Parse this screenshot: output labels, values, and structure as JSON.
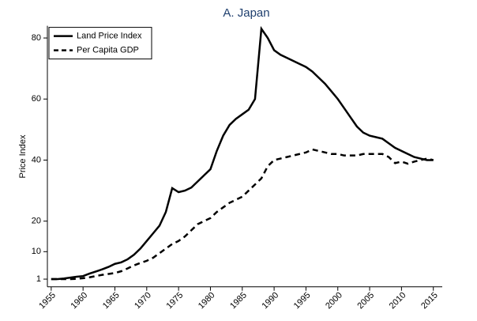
{
  "chart_data": {
    "type": "line",
    "title": "A. Japan",
    "y_label": "Price Index",
    "x": [
      1955,
      1956,
      1957,
      1958,
      1959,
      1960,
      1961,
      1962,
      1963,
      1964,
      1965,
      1966,
      1967,
      1968,
      1969,
      1970,
      1971,
      1972,
      1973,
      1974,
      1975,
      1976,
      1977,
      1978,
      1979,
      1980,
      1981,
      1982,
      1983,
      1984,
      1985,
      1986,
      1987,
      1988,
      1989,
      1990,
      1991,
      1992,
      1993,
      1994,
      1995,
      1996,
      1997,
      1998,
      1999,
      2000,
      2001,
      2002,
      2003,
      2004,
      2005,
      2006,
      2007,
      2008,
      2009,
      2010,
      2011,
      2012,
      2013,
      2014,
      2015
    ],
    "series": [
      {
        "name": "Land Price Index",
        "color": "#000000",
        "dash": false,
        "values": [
          1,
          1,
          1.2,
          1.5,
          1.8,
          2,
          2.8,
          3.5,
          4.2,
          5,
          6,
          6.5,
          7.5,
          9,
          11,
          13.5,
          16,
          18.5,
          23,
          30.8,
          29.5,
          30,
          31,
          33,
          35,
          37,
          43,
          48,
          51.5,
          53.5,
          55,
          56.5,
          60,
          83,
          80,
          76,
          74.5,
          73.5,
          72.5,
          71.5,
          70.5,
          69,
          67,
          65,
          62.5,
          60,
          57,
          54,
          51,
          49,
          48,
          47.5,
          47,
          45.5,
          44,
          43,
          42,
          41,
          40.5,
          40,
          40
        ]
      },
      {
        "name": "Per Capita GDP",
        "color": "#000000",
        "dash": true,
        "values": [
          1,
          1,
          1,
          1,
          1.1,
          1.3,
          1.6,
          2,
          2.4,
          2.7,
          3,
          3.6,
          4.5,
          5.5,
          6.3,
          7,
          8,
          9.5,
          11,
          12.5,
          13.5,
          15,
          17,
          19,
          20,
          21,
          23,
          24.5,
          26,
          27,
          28,
          30,
          32,
          34,
          38,
          40,
          40.5,
          41,
          41.5,
          42,
          42.5,
          43.5,
          43,
          42.5,
          42,
          42,
          41.5,
          41.5,
          41.5,
          42,
          42,
          42,
          42,
          41,
          39,
          39.5,
          38.8,
          39.5,
          40,
          40.5,
          40
        ]
      }
    ],
    "xlim": [
      1954.4,
      2016.4
    ],
    "xticks": [
      1955,
      1960,
      1965,
      1970,
      1975,
      1980,
      1985,
      1990,
      1995,
      2000,
      2005,
      2010,
      2015
    ],
    "ylim": [
      -1.5,
      84
    ],
    "yticks": [
      1,
      10,
      20,
      40,
      60,
      80
    ],
    "grid": false,
    "legend": "top-left"
  }
}
